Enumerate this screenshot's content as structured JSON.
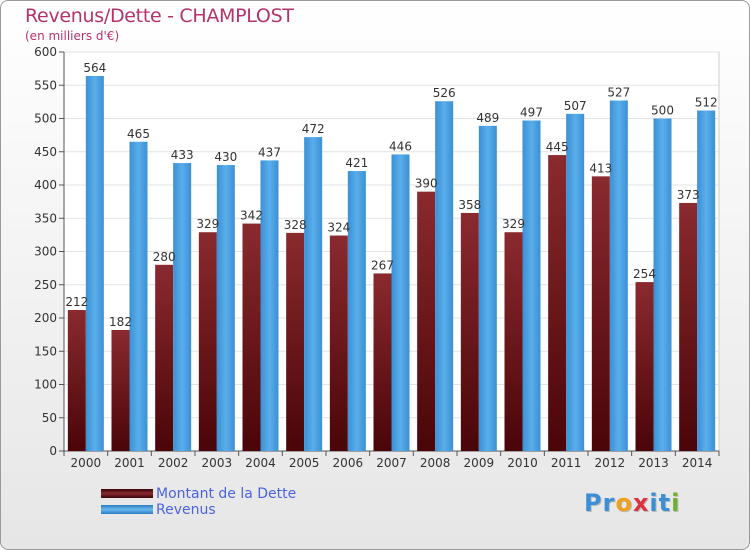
{
  "title": "Revenus/Dette - CHAMPLOST",
  "subtitle": "(en milliers d'€)",
  "logo": {
    "text": "Proxiti",
    "letters": [
      "P",
      "r",
      "o",
      "x",
      "i",
      "t",
      "i"
    ],
    "colors": [
      "#3a8fd8",
      "#3a8fd8",
      "#f0a020",
      "#e03040",
      "#3a8fd8",
      "#3a8fd8",
      "#70b030"
    ]
  },
  "legend": [
    {
      "label": "Montant de la Dette",
      "color": "#6b0f13"
    },
    {
      "label": "Revenus",
      "color": "#4a9fe0"
    }
  ],
  "chart_data": {
    "type": "bar",
    "categories": [
      "2000",
      "2001",
      "2002",
      "2003",
      "2004",
      "2005",
      "2006",
      "2007",
      "2008",
      "2009",
      "2010",
      "2011",
      "2012",
      "2013",
      "2014"
    ],
    "series": [
      {
        "name": "Montant de la Dette",
        "color": "#7a1f24",
        "values": [
          212,
          182,
          280,
          329,
          342,
          328,
          324,
          267,
          390,
          358,
          329,
          445,
          413,
          254,
          373
        ]
      },
      {
        "name": "Revenus",
        "color": "#4ea2e2",
        "values": [
          564,
          465,
          433,
          430,
          437,
          472,
          421,
          446,
          526,
          489,
          497,
          507,
          527,
          500,
          512
        ]
      }
    ],
    "ylim": [
      0,
      600
    ],
    "yticks": [
      0,
      50,
      100,
      150,
      200,
      250,
      300,
      350,
      400,
      450,
      500,
      550,
      600
    ],
    "grid": true,
    "legend_position": "bottom-left"
  }
}
